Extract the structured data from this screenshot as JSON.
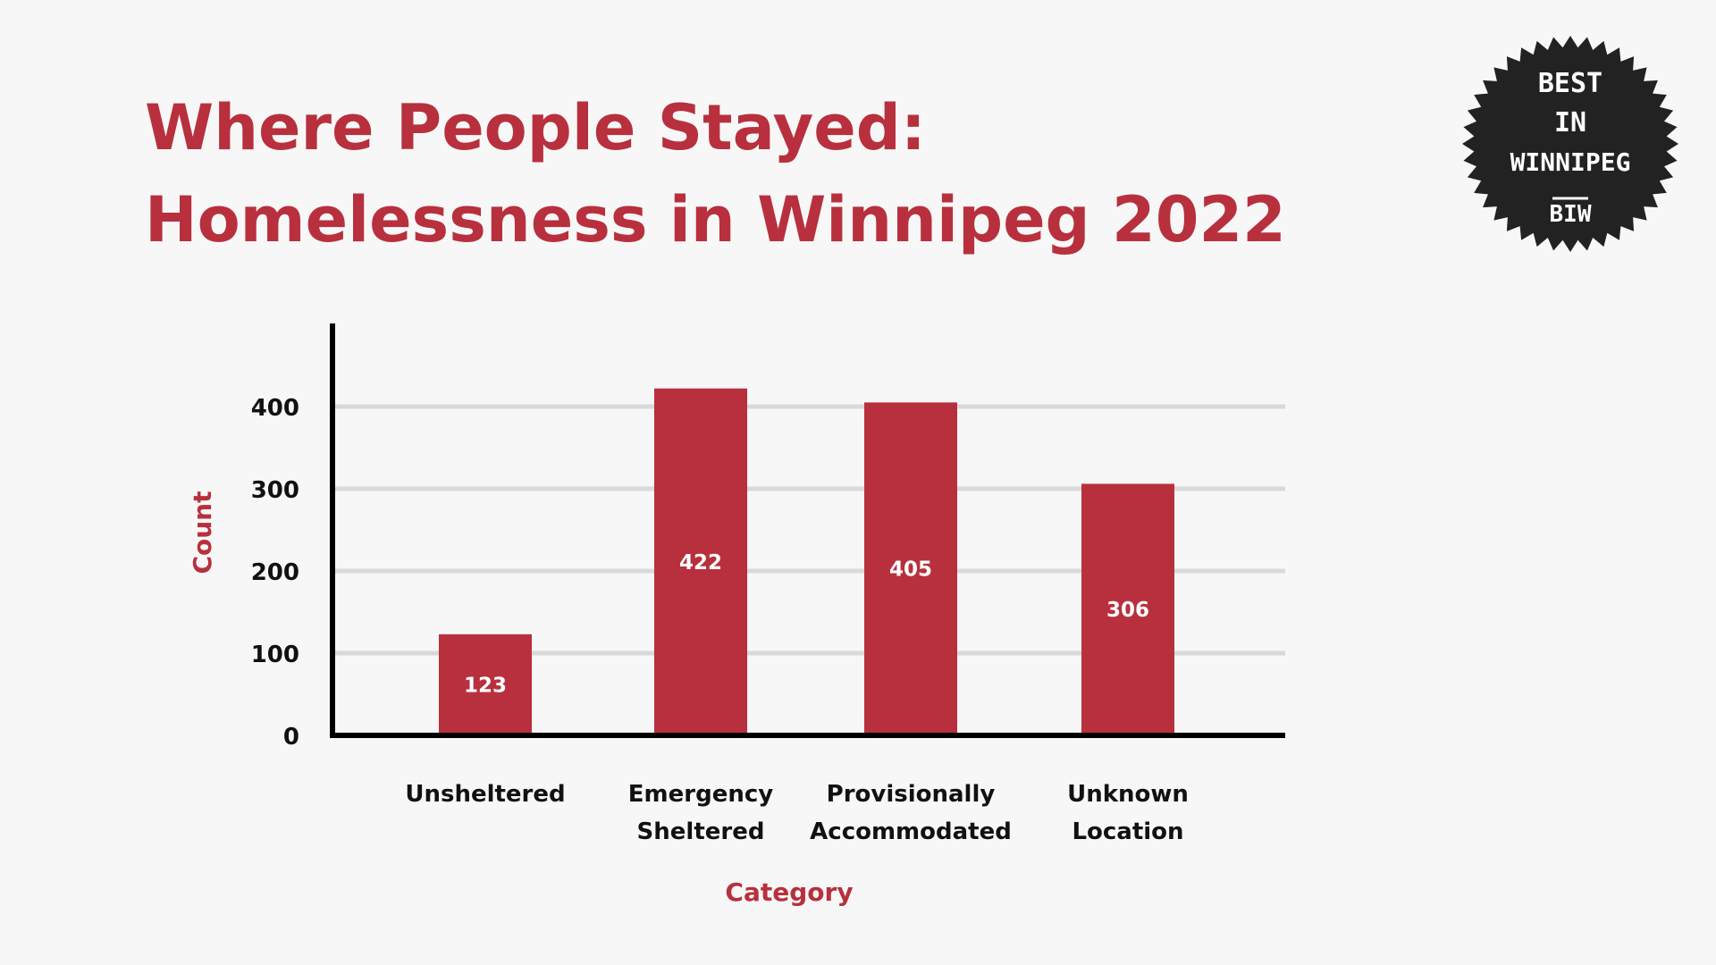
{
  "title": {
    "line1": "Where People Stayed:",
    "line2": "Homelessness in Winnipeg 2022"
  },
  "badge": {
    "lines": [
      "BEST",
      "IN",
      "WINNIPEG"
    ],
    "mark": "BIW"
  },
  "colors": {
    "accent": "#b8303d",
    "bar": "#b8303d",
    "grid": "#d9d9d9",
    "axis": "#000000",
    "badge": "#222222"
  },
  "chart_data": {
    "type": "bar",
    "categories": [
      [
        "Unsheltered"
      ],
      [
        "Emergency",
        "Sheltered"
      ],
      [
        "Provisionally",
        "Accommodated"
      ],
      [
        "Unknown",
        "Location"
      ]
    ],
    "values": [
      123,
      422,
      405,
      306
    ],
    "data_labels": [
      "123",
      "422",
      "405",
      "306"
    ],
    "title": "",
    "xlabel": "Category",
    "ylabel": "Count",
    "ylim": [
      0,
      500
    ],
    "yticks": [
      0,
      100,
      200,
      300,
      400
    ],
    "grid": true,
    "legend": "none"
  }
}
